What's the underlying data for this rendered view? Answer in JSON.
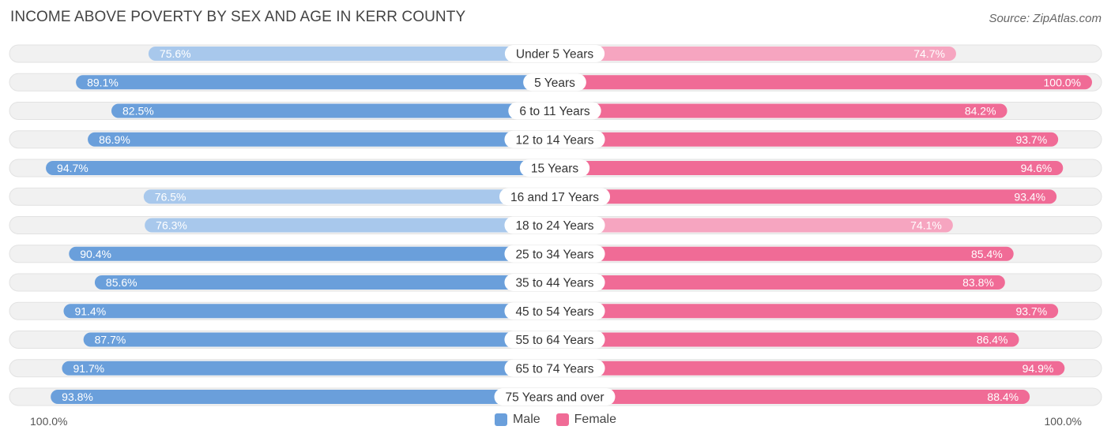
{
  "title": "INCOME ABOVE POVERTY BY SEX AND AGE IN KERR COUNTY",
  "source": "Source: ZipAtlas.com",
  "colors": {
    "male_strong": "#6a9fdb",
    "male_light": "#a8c8ec",
    "female_strong": "#f06b96",
    "female_light": "#f6a5c0",
    "track": "#f1f1f1"
  },
  "axis": {
    "left_label": "100.0%",
    "right_label": "100.0%"
  },
  "legend": {
    "male": "Male",
    "female": "Female"
  },
  "chart_data": {
    "type": "bar",
    "orientation": "horizontal-diverging",
    "title": "INCOME ABOVE POVERTY BY SEX AND AGE IN KERR COUNTY",
    "xlim": [
      0,
      100
    ],
    "categories": [
      "Under 5 Years",
      "5 Years",
      "6 to 11 Years",
      "12 to 14 Years",
      "15 Years",
      "16 and 17 Years",
      "18 to 24 Years",
      "25 to 34 Years",
      "35 to 44 Years",
      "45 to 54 Years",
      "55 to 64 Years",
      "65 to 74 Years",
      "75 Years and over"
    ],
    "series": [
      {
        "name": "Male",
        "values": [
          75.6,
          89.1,
          82.5,
          86.9,
          94.7,
          76.5,
          76.3,
          90.4,
          85.6,
          91.4,
          87.7,
          91.7,
          93.8
        ],
        "labels": [
          "75.6%",
          "89.1%",
          "82.5%",
          "86.9%",
          "94.7%",
          "76.5%",
          "76.3%",
          "90.4%",
          "85.6%",
          "91.4%",
          "87.7%",
          "91.7%",
          "93.8%"
        ]
      },
      {
        "name": "Female",
        "values": [
          74.7,
          100.0,
          84.2,
          93.7,
          94.6,
          93.4,
          74.1,
          85.4,
          83.8,
          93.7,
          86.4,
          94.9,
          88.4
        ],
        "labels": [
          "74.7%",
          "100.0%",
          "84.2%",
          "93.7%",
          "94.6%",
          "93.4%",
          "74.1%",
          "85.4%",
          "83.8%",
          "93.7%",
          "86.4%",
          "94.9%",
          "88.4%"
        ]
      }
    ],
    "legend_position": "bottom-center",
    "grid": false
  }
}
